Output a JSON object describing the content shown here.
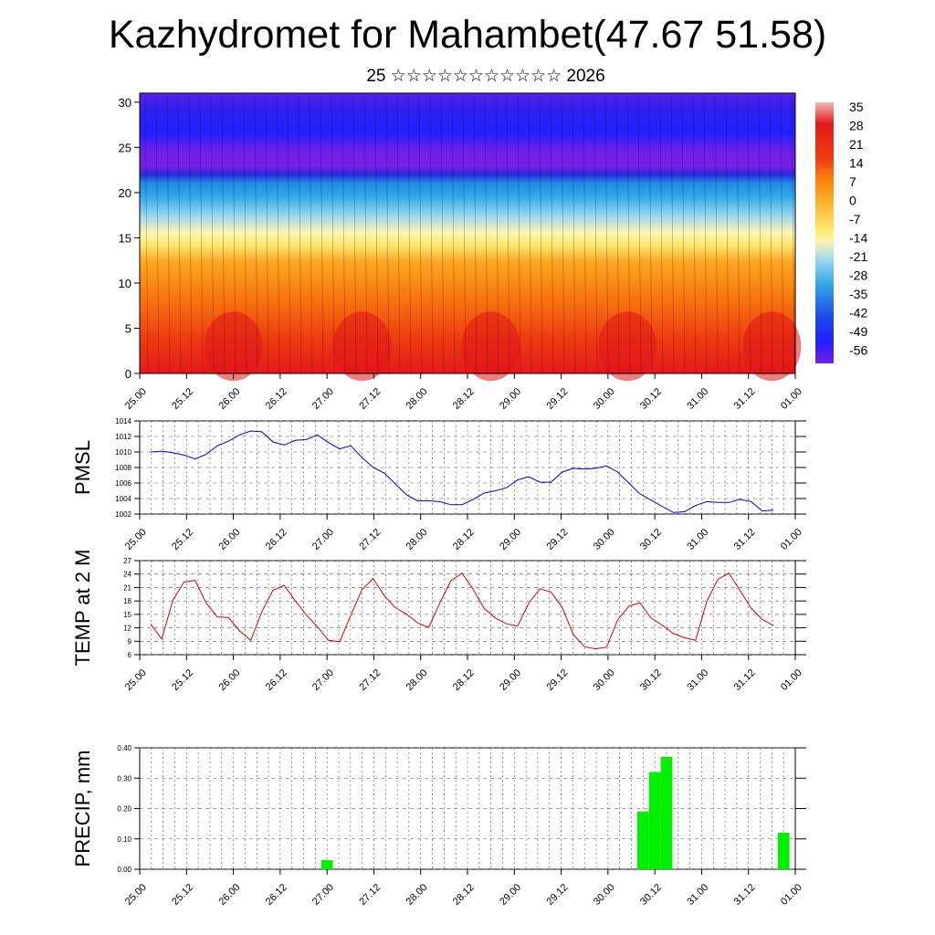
{
  "title": "Kazhydromet for Mahambet(47.67 51.58)",
  "subtitle": "25 ☆☆☆☆☆☆☆☆☆☆☆ 2026",
  "time_labels": [
    "25.00",
    "25.12",
    "26.00",
    "26.12",
    "27.00",
    "27.12",
    "28.00",
    "28.12",
    "29.00",
    "29.12",
    "30.00",
    "30.12",
    "31.00",
    "31.12",
    "01.00"
  ],
  "colors": {
    "pmsl_line": "#0000cc",
    "temp_line": "#dd0000",
    "precip_bar": "#00ee00",
    "grid": "#555555"
  },
  "chart_data": [
    {
      "type": "heatmap",
      "name": "cross-section",
      "description_axis": "height",
      "ylim": [
        0,
        31
      ],
      "yticks": [
        0,
        5,
        10,
        15,
        20,
        25,
        30
      ],
      "x_categories_ref": "time_labels",
      "colorbar": {
        "labels": [
          "35",
          "28",
          "21",
          "14",
          "7",
          "0",
          "-7",
          "-14",
          "-21",
          "-28",
          "-35",
          "-42",
          "-49",
          "-56"
        ],
        "stops": [
          {
            "v": 38,
            "c": "#f4b8b8"
          },
          {
            "v": 30,
            "c": "#e31a1c"
          },
          {
            "v": 17,
            "c": "#f03b0e"
          },
          {
            "v": 10,
            "c": "#f97a0d"
          },
          {
            "v": 2,
            "c": "#fca823"
          },
          {
            "v": -10,
            "c": "#ffe870"
          },
          {
            "v": -14,
            "c": "#fff5b0"
          },
          {
            "v": -21,
            "c": "#9fd8ee"
          },
          {
            "v": -30,
            "c": "#33a9e8"
          },
          {
            "v": -42,
            "c": "#1e4ee8"
          },
          {
            "v": -52,
            "c": "#2020ff"
          },
          {
            "v": -60,
            "c": "#7a1fe6"
          }
        ]
      }
    },
    {
      "type": "line",
      "ylabel": "PMSL",
      "ylim": [
        1002,
        1014
      ],
      "yticks": [
        "1002",
        "1004",
        "1006",
        "1008",
        "1010",
        "1012",
        "1014"
      ],
      "x_categories_ref": "time_labels",
      "step_hours": 3,
      "values": [
        1010.0,
        1010.1,
        1009.9,
        1009.6,
        1009.1,
        1009.7,
        1010.8,
        1011.4,
        1012.2,
        1012.7,
        1012.6,
        1011.3,
        1010.9,
        1011.5,
        1011.6,
        1012.2,
        1011.2,
        1010.4,
        1010.8,
        1009.3,
        1008.0,
        1007.3,
        1005.9,
        1004.5,
        1003.7,
        1003.7,
        1003.6,
        1003.2,
        1003.2,
        1003.9,
        1004.7,
        1005.0,
        1005.4,
        1006.4,
        1006.8,
        1006.1,
        1006.1,
        1007.4,
        1007.9,
        1007.8,
        1007.9,
        1008.2,
        1007.4,
        1006.0,
        1004.6,
        1003.8,
        1003.0,
        1002.2,
        1002.3,
        1003.1,
        1003.6,
        1003.5,
        1003.5,
        1003.9,
        1003.6,
        1002.4,
        1002.5
      ]
    },
    {
      "type": "line",
      "ylabel": "TEMP at 2 M",
      "ylim": [
        6,
        27
      ],
      "yticks": [
        "6",
        "9",
        "12",
        "15",
        "18",
        "21",
        "24",
        "27"
      ],
      "x_categories_ref": "time_labels",
      "step_hours": 3,
      "values": [
        12.8,
        9.5,
        18.2,
        22.2,
        22.6,
        17.5,
        14.4,
        14.3,
        11.3,
        9.2,
        15.6,
        20.4,
        21.5,
        18.0,
        14.9,
        12.2,
        9.2,
        8.9,
        14.8,
        20.5,
        23.0,
        19.2,
        16.5,
        15.1,
        13.1,
        12.1,
        17.5,
        22.5,
        24.2,
        20.6,
        16.3,
        14.2,
        12.9,
        12.4,
        17.5,
        20.7,
        20.0,
        16.6,
        10.5,
        7.8,
        7.3,
        7.7,
        13.8,
        16.8,
        17.6,
        14.2,
        12.6,
        10.7,
        9.8,
        9.2,
        17.8,
        22.8,
        24.2,
        20.3,
        16.4,
        13.9,
        12.5
      ]
    },
    {
      "type": "bar",
      "ylabel": "PRECIP, mm",
      "ylim": [
        0,
        0.4
      ],
      "yticks": [
        "0.00",
        "0.10",
        "0.20",
        "0.30",
        "0.40"
      ],
      "x_categories_ref": "time_labels",
      "step_hours": 3,
      "bars": [
        {
          "t": 48,
          "v": 0.03
        },
        {
          "t": 129,
          "v": 0.19
        },
        {
          "t": 132,
          "v": 0.32
        },
        {
          "t": 135,
          "v": 0.37
        },
        {
          "t": 165,
          "v": 0.12
        }
      ]
    }
  ]
}
